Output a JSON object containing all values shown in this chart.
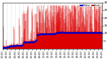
{
  "bg_color": "#ffffff",
  "plot_bg": "#ffffff",
  "bar_color": "#dd0000",
  "median_color": "#0000cc",
  "ylim": [
    0,
    30
  ],
  "ytick_vals": [
    5,
    10,
    15,
    20,
    25,
    30
  ],
  "n_points": 1440,
  "seed": 7,
  "grid_color": "#aaaaaa",
  "tick_fontsize": 3.0,
  "legend_labels": [
    "Median",
    "Actual"
  ]
}
